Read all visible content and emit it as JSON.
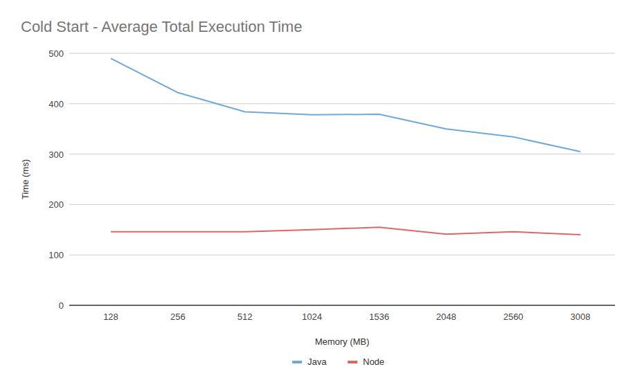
{
  "chart_data": {
    "type": "line",
    "title": "Cold Start - Average Total Execution Time",
    "x_label": "Memory (MB)",
    "y_label": "Time (ms)",
    "categories": [
      "128",
      "256",
      "512",
      "1024",
      "1536",
      "2048",
      "2560",
      "3008"
    ],
    "series": [
      {
        "name": "Java",
        "color": "#6fa8dc",
        "values": [
          490,
          422,
          384,
          378,
          379,
          350,
          334,
          305
        ]
      },
      {
        "name": "Node",
        "color": "#e06666",
        "values": [
          146,
          146,
          146,
          150,
          155,
          141,
          146,
          140
        ]
      }
    ],
    "ylim": [
      0,
      500
    ],
    "yticks": [
      0,
      100,
      200,
      300,
      400,
      500
    ],
    "grid": true,
    "legend": "bottom"
  }
}
